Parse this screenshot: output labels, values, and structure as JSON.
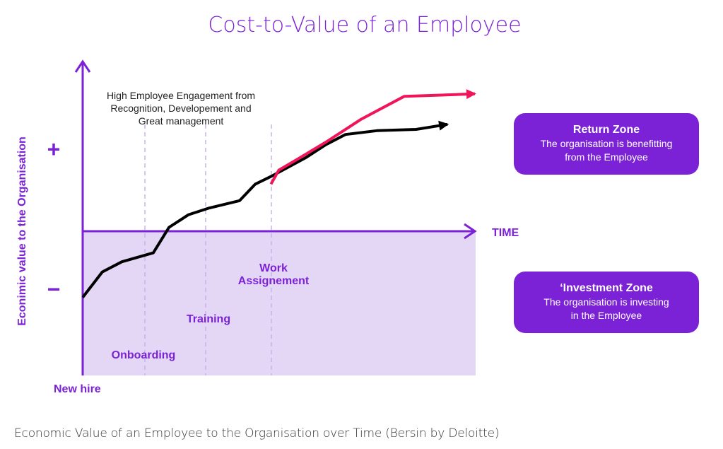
{
  "chart_data": {
    "type": "line",
    "title": "Cost-to-Value of an Employee",
    "ylabel": "Econimic value to the Organisation",
    "xlabel": "TIME",
    "y_plus_label": "+",
    "y_minus_label": "−",
    "origin_label": "New hire",
    "annotation": [
      "High Employee Engagement from",
      "Recognition, Developement and",
      "Great management"
    ],
    "phases": [
      {
        "label": [
          "Onboarding"
        ]
      },
      {
        "label": [
          "Training"
        ]
      },
      {
        "label": [
          "Work",
          "Assignement"
        ]
      }
    ],
    "x_range": [
      0,
      100
    ],
    "y_range": [
      -100,
      100
    ],
    "series": [
      {
        "color": "#000000",
        "x": [
          0,
          5,
          10,
          18,
          22,
          27,
          32,
          40,
          44,
          48,
          57,
          62,
          67,
          75,
          85,
          93
        ],
        "y": [
          -52,
          -32,
          -24,
          -17,
          3,
          13,
          18,
          24,
          37,
          43,
          58,
          68,
          76,
          79,
          80,
          84
        ]
      },
      {
        "color": "#f0145a",
        "x": [
          48,
          50,
          55,
          62,
          71,
          82,
          92,
          100
        ],
        "y": [
          37,
          48,
          57,
          70,
          88,
          106,
          107,
          108
        ]
      }
    ]
  },
  "zones": {
    "return": {
      "title": "Return Zone",
      "desc": [
        "The organisation is benefitting",
        "from the Employee"
      ]
    },
    "investment": {
      "title": "‘Investment Zone",
      "desc": [
        "The organisation is investing",
        "in the Employee"
      ]
    }
  },
  "caption": "Economic Value of an Employee to the Organisation over Time (Bersin by Deloitte)",
  "colors": {
    "accent": "#7b22d6",
    "shade": "#e4d7f5",
    "phase_line": "#c7b4e6"
  }
}
